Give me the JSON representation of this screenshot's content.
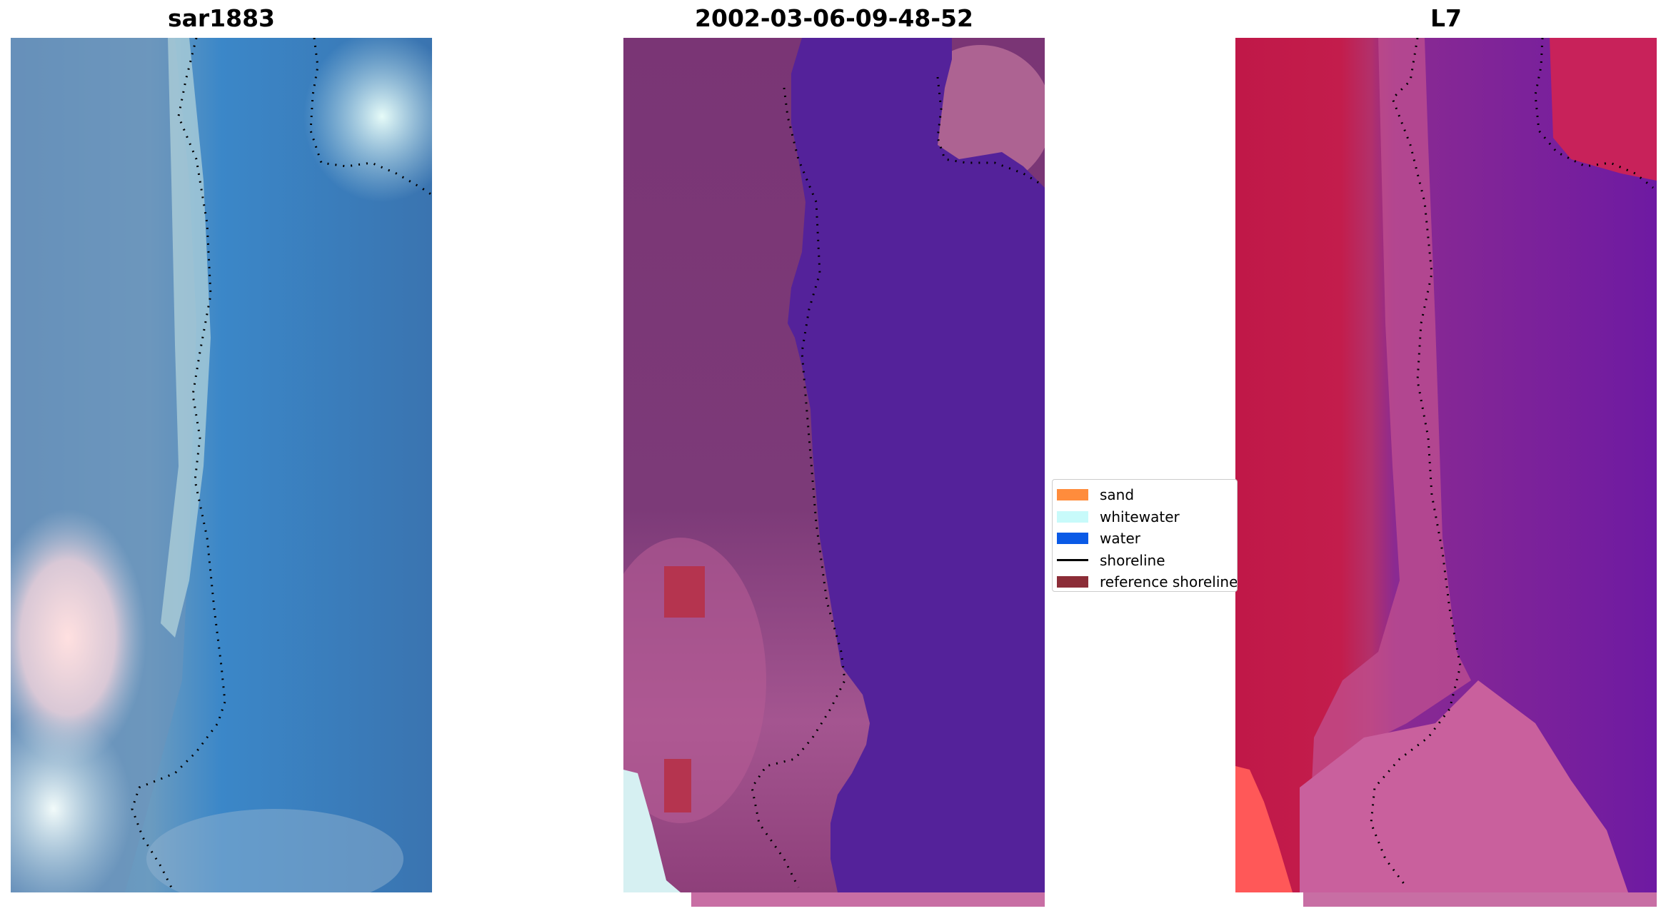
{
  "panels": [
    {
      "title": "sar1883"
    },
    {
      "title": "2002-03-06-09-48-52"
    },
    {
      "title": "L7"
    }
  ],
  "legend": {
    "items": [
      {
        "label": "sand",
        "color": "#ff8c3c",
        "kind": "patch"
      },
      {
        "label": "whitewater",
        "color": "#c8fafa",
        "kind": "patch"
      },
      {
        "label": "water",
        "color": "#0a5ae6",
        "kind": "patch"
      },
      {
        "label": "shoreline",
        "color": "#000000",
        "kind": "line"
      },
      {
        "label": "reference shoreline",
        "color": "#8c2d37",
        "kind": "patch"
      }
    ]
  },
  "colors": {
    "panel1_water": "#3f79b3",
    "panel1_land": "#5b8ab8",
    "panel2_land": "#7a3573",
    "panel2_water": "#55229a",
    "panel3_land": "#c21a4a",
    "panel3_water": "#6a1aa0"
  }
}
